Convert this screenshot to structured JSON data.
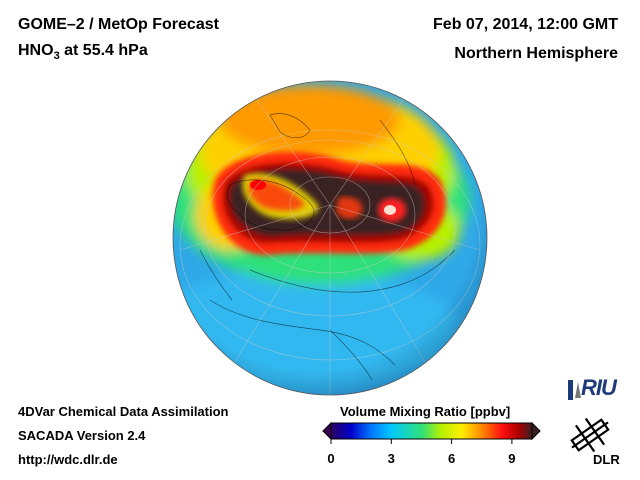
{
  "header": {
    "title": "GOME–2 / MetOp Forecast",
    "species": "HNO",
    "species_sub": "3",
    "level": " at 55.4 hPa",
    "date": "Feb 07, 2014, 12:00 GMT",
    "region": "Northern Hemisphere"
  },
  "footer": {
    "line1": "4DVar Chemical Data Assimilation",
    "line2": "SACADA Version 2.4",
    "line3": "http://wdc.dlr.de"
  },
  "legend": {
    "title": "Volume Mixing Ratio [ppbv]",
    "min": 0,
    "max": 10,
    "ticks": [
      {
        "value": 0,
        "label": "0"
      },
      {
        "value": 3,
        "label": "3"
      },
      {
        "value": 6,
        "label": "6"
      },
      {
        "value": 9,
        "label": "9"
      }
    ],
    "colors": [
      "#2a0060",
      "#0000cc",
      "#0077ff",
      "#00c8ff",
      "#2fe07a",
      "#b8f000",
      "#ffee00",
      "#ff8800",
      "#ff1010",
      "#b00000",
      "#3a2020"
    ]
  },
  "logos": {
    "riu": "RIU",
    "dlr": "DLR"
  }
}
